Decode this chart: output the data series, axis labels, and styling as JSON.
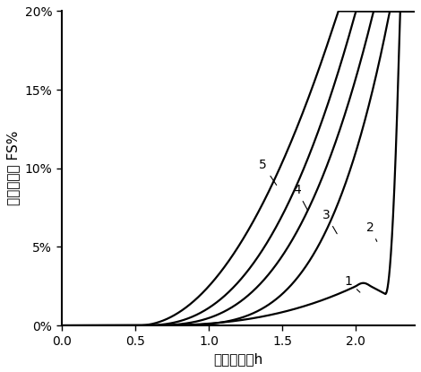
{
  "title": "",
  "xlabel": "归一化磁场h",
  "ylabel": "非线性误差 FS%",
  "xlim": [
    0.0,
    2.4
  ],
  "ylim": [
    0.0,
    0.2
  ],
  "yticks": [
    0.0,
    0.05,
    0.1,
    0.15,
    0.2
  ],
  "ytick_labels": [
    "0%",
    "5%",
    "10%",
    "15%",
    "20%"
  ],
  "xticks": [
    0.0,
    0.5,
    1.0,
    1.5,
    2.0
  ],
  "xtick_labels": [
    "0.0",
    "0.5",
    "1.0",
    "1.5",
    "2.0"
  ],
  "curve_color": "#000000",
  "curve_linewidth": 1.6,
  "label_fontsize": 11,
  "tick_fontsize": 10,
  "background_color": "#ffffff"
}
